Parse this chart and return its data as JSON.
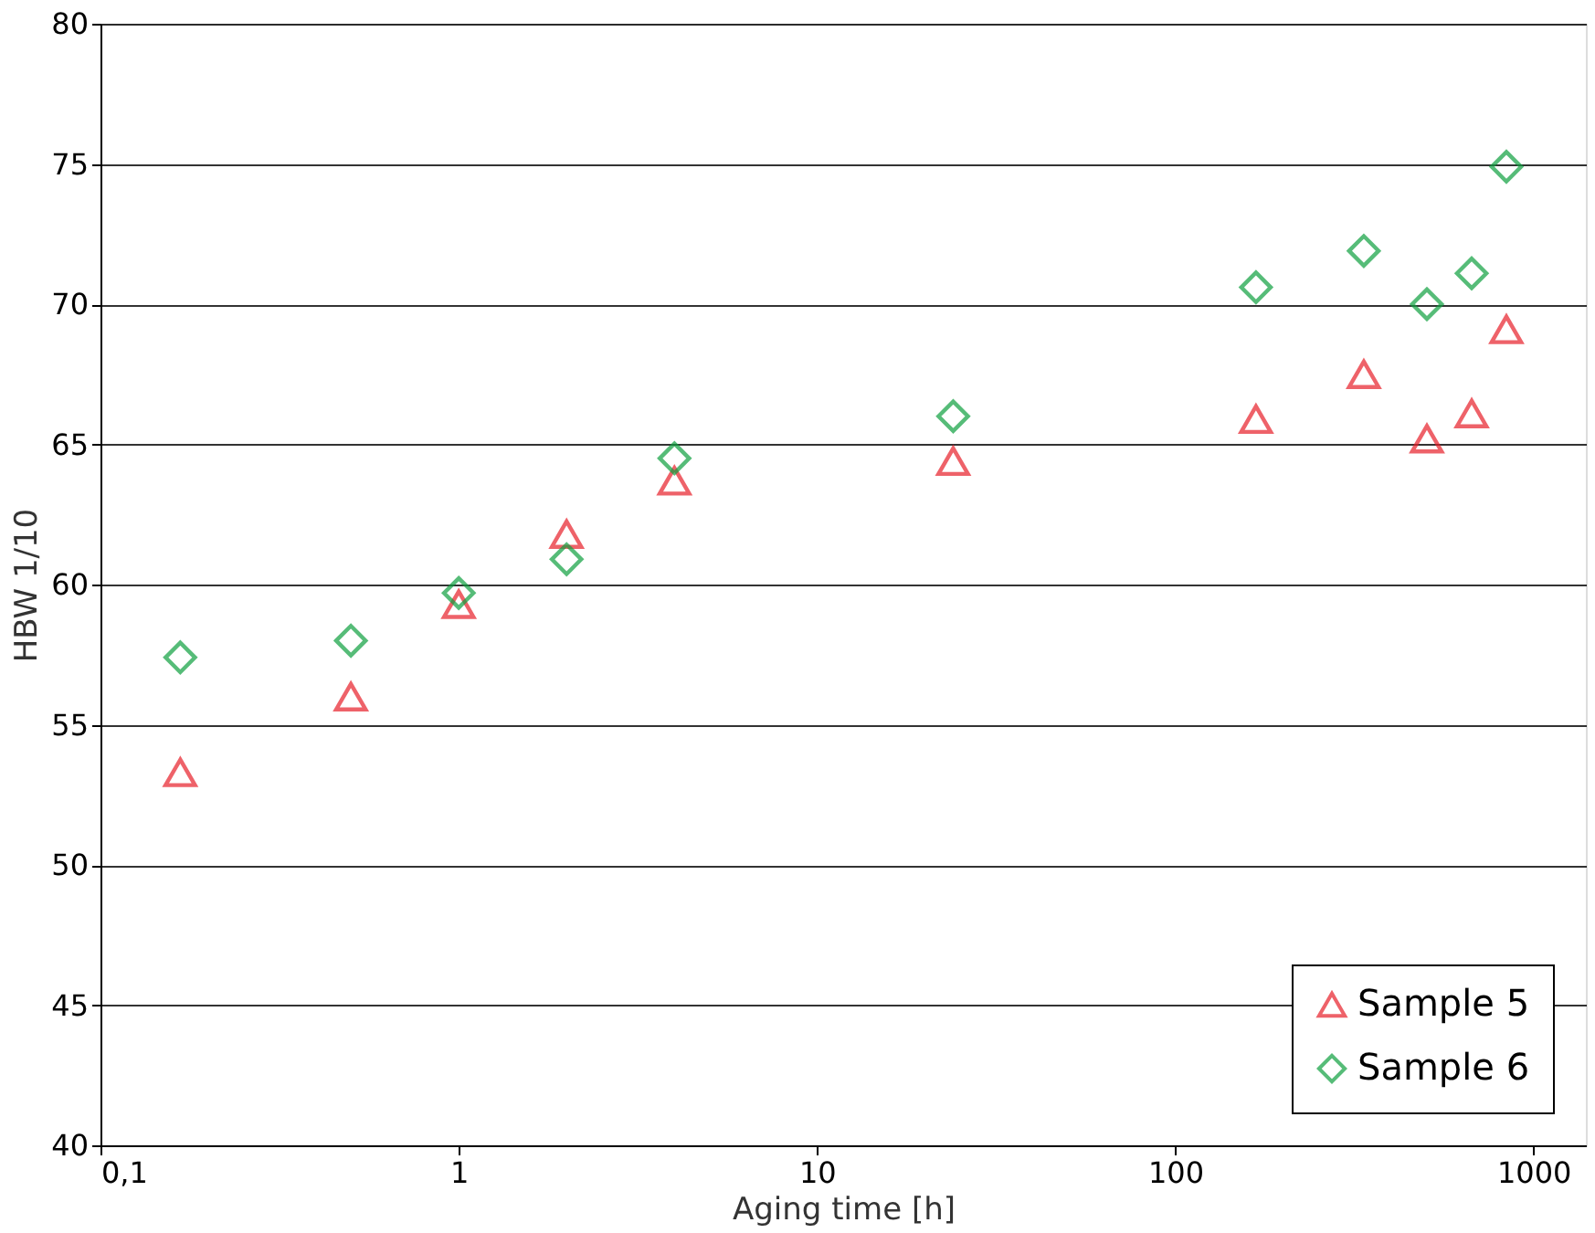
{
  "chart_data": {
    "type": "scatter",
    "xlabel": "Aging time [h]",
    "ylabel": "HBW 1/10",
    "x": [
      0.167,
      0.5,
      1,
      2,
      4,
      24,
      168,
      336,
      504,
      672,
      840
    ],
    "series": [
      {
        "name": "Sample 5",
        "color": "#e8202a",
        "marker": "triangle",
        "values": [
          53.3,
          56.0,
          59.3,
          61.8,
          63.7,
          64.4,
          65.9,
          67.5,
          65.2,
          66.1,
          69.1
        ]
      },
      {
        "name": "Sample 6",
        "color": "#10a040",
        "marker": "diamond",
        "values": [
          57.4,
          58.0,
          59.7,
          60.9,
          64.5,
          66.0,
          70.6,
          71.9,
          70.0,
          71.1,
          74.9
        ]
      }
    ],
    "log": "x",
    "xlim": [
      0.1,
      1400
    ],
    "xticks": [
      {
        "value": 0.1,
        "label": "0,1"
      },
      1,
      10,
      100,
      1000
    ],
    "ylim": [
      40,
      80
    ],
    "yticks": [
      40,
      45,
      50,
      55,
      60,
      65,
      70,
      75,
      80
    ],
    "grid": "y",
    "legend": "bottom right"
  }
}
